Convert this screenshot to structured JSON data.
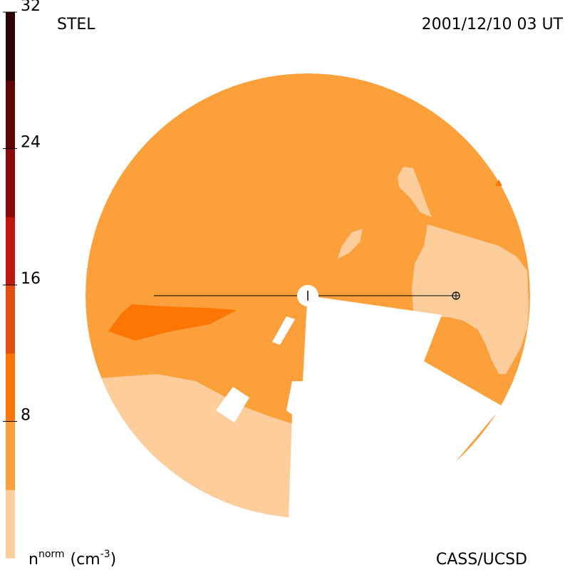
{
  "header": {
    "observatory": "STEL",
    "timestamp": "2001/12/10 03 UT"
  },
  "footer": {
    "unit_base": "n",
    "unit_sup": "norm",
    "unit_paren": "(cm",
    "unit_exp": "-3",
    "unit_close": ")",
    "credit": "CASS/UCSD"
  },
  "colorbar": {
    "ticks": [
      "8",
      "16",
      "24",
      "32"
    ],
    "bands": [
      "#fdcd9c",
      "#fca03c",
      "#fd7502",
      "#e24e0c",
      "#be170f",
      "#8c0808",
      "#5c0608",
      "#2c0205"
    ]
  },
  "map_colors": {
    "base": "#fca03c",
    "light": "#fdcd9c",
    "dark": "#fd7502",
    "gap": "#ffffff",
    "line": "#000000"
  }
}
